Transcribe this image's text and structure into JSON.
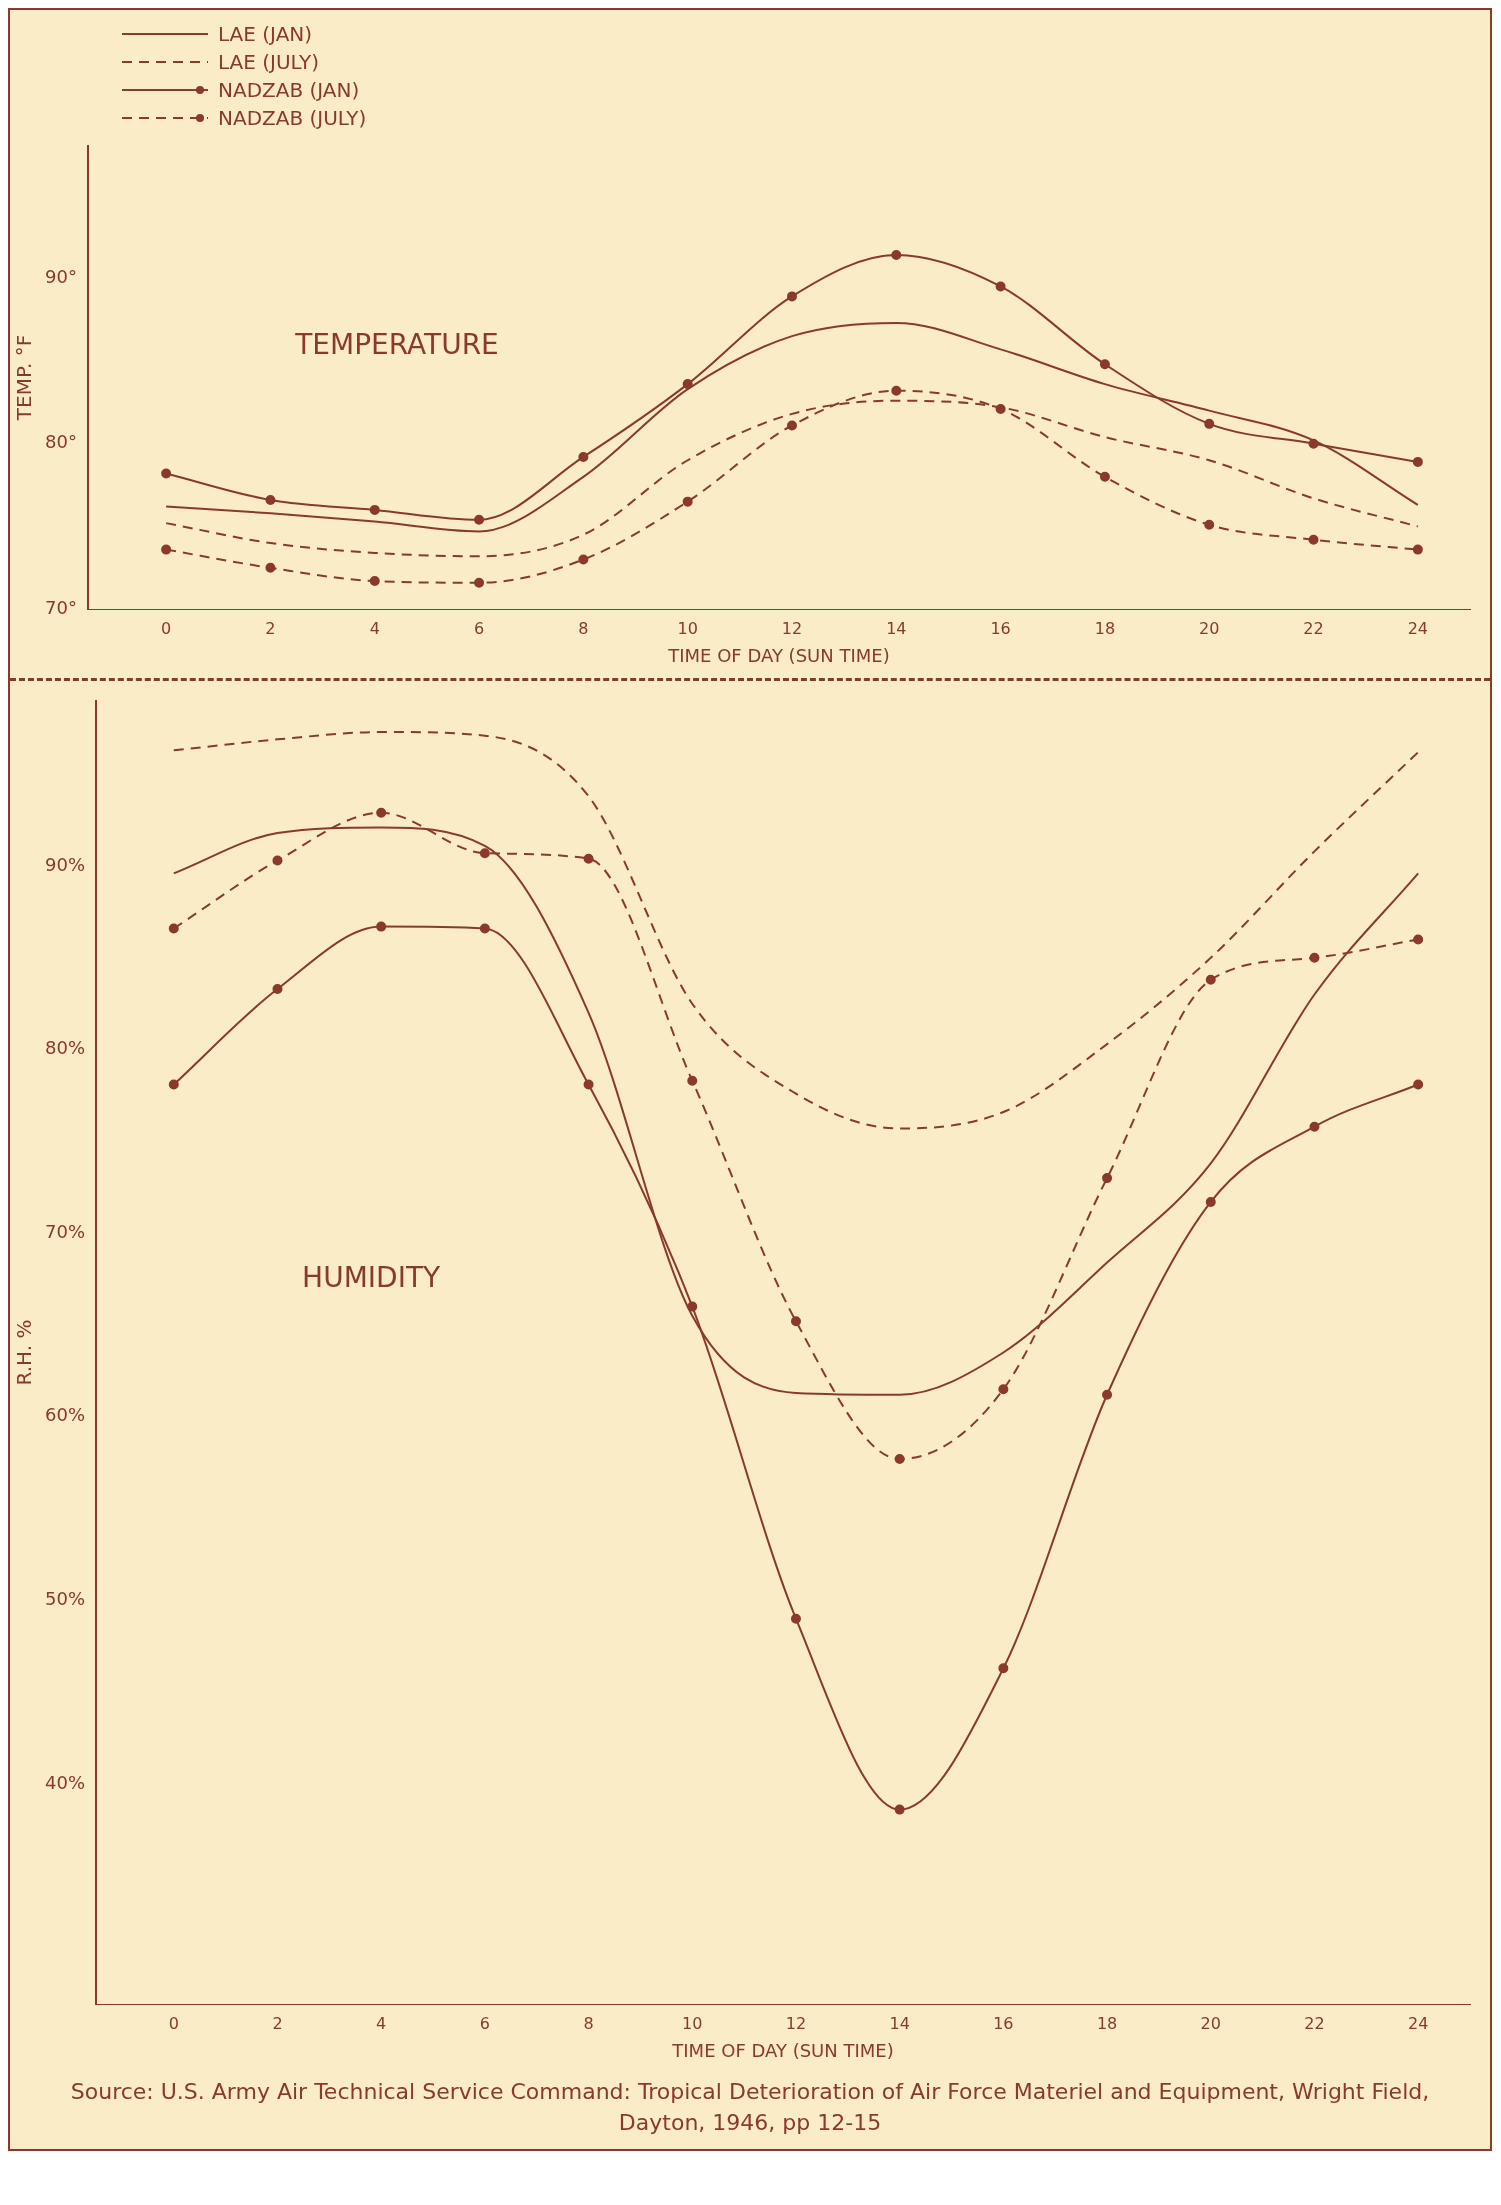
{
  "chart_data": [
    {
      "type": "line",
      "xlabel": "TIME OF DAY (SUN TIME)",
      "ylabel": "TEMP. °F",
      "x": [
        0,
        2,
        4,
        6,
        8,
        10,
        12,
        14,
        16,
        18,
        20,
        22,
        24
      ],
      "xlim": [
        -1.5,
        25
      ],
      "xticks": [
        0,
        2,
        4,
        6,
        8,
        10,
        12,
        14,
        16,
        18,
        20,
        22,
        24
      ],
      "ylim": [
        70,
        98
      ],
      "yticks": [
        {
          "value": 70,
          "label": "70°"
        },
        {
          "value": 80,
          "label": "80°"
        },
        {
          "value": 90,
          "label": "90°"
        }
      ],
      "grid": false,
      "legend": "top left",
      "annotations": [
        "TEMPERATURE"
      ],
      "series": [
        {
          "name": "LAE (JAN)",
          "color": "#8b3a2a",
          "line_style": "solid",
          "marker": "none",
          "values": [
            76.2,
            75.8,
            75.3,
            74.7,
            78,
            83.3,
            86.5,
            87.3,
            85.7,
            83.6,
            82,
            80.2,
            76.3
          ]
        },
        {
          "name": "LAE (JULY)",
          "color": "#8b3a2a",
          "line_style": "dashed",
          "marker": "none",
          "values": [
            75.2,
            74,
            73.4,
            73.2,
            74.5,
            79,
            81.8,
            82.6,
            82.2,
            80.4,
            79,
            76.7,
            75
          ]
        },
        {
          "name": "NADZAB (JAN)",
          "color": "#8b3a2a",
          "line_style": "solid",
          "marker": "circle",
          "values": [
            78.2,
            76.6,
            76,
            75.4,
            79.2,
            83.6,
            88.9,
            91.4,
            89.5,
            84.8,
            81.2,
            80,
            78.9
          ]
        },
        {
          "name": "NADZAB (JULY)",
          "color": "#8b3a2a",
          "line_style": "dashed",
          "marker": "circle",
          "values": [
            73.6,
            72.5,
            71.7,
            71.6,
            73,
            76.5,
            81.1,
            83.2,
            82.1,
            78,
            75.1,
            74.2,
            73.6
          ]
        }
      ]
    },
    {
      "type": "line",
      "xlabel": "TIME OF DAY (SUN TIME)",
      "ylabel": "R.H. %",
      "x": [
        0,
        2,
        4,
        6,
        8,
        10,
        12,
        14,
        16,
        18,
        20,
        22,
        24
      ],
      "xlim": [
        -1.5,
        25
      ],
      "xticks": [
        0,
        2,
        4,
        6,
        8,
        10,
        12,
        14,
        16,
        18,
        20,
        22,
        24
      ],
      "ylim": [
        28,
        99
      ],
      "yticks": [
        {
          "value": 40,
          "label": "40%"
        },
        {
          "value": 50,
          "label": "50%"
        },
        {
          "value": 60,
          "label": "60%"
        },
        {
          "value": 70,
          "label": "70%"
        },
        {
          "value": 80,
          "label": "80%"
        },
        {
          "value": 90,
          "label": "90%"
        }
      ],
      "grid": false,
      "legend": false,
      "annotations": [
        "HUMIDITY",
        "Source: U.S. Army Air Technical Service Command: Tropical Deterioration of Air Force Materiel and Equipment, Wright Field, Dayton, 1946, pp 12-15"
      ],
      "series": [
        {
          "color": "#8b3a2a",
          "line_style": "solid",
          "marker": "none",
          "values": [
            89.6,
            91.8,
            92.1,
            91.1,
            82,
            65.5,
            61.3,
            61.2,
            63.5,
            68.4,
            73.8,
            83,
            89.6
          ]
        },
        {
          "color": "#8b3a2a",
          "line_style": "dashed",
          "marker": "none",
          "values": [
            96.3,
            96.9,
            97.3,
            97.1,
            93.8,
            82.5,
            77.6,
            75.7,
            76.6,
            80.3,
            85,
            90.8,
            96.2
          ]
        },
        {
          "color": "#8b3a2a",
          "line_style": "solid",
          "marker": "circle",
          "values": [
            78.1,
            83.3,
            86.7,
            86.6,
            78.1,
            66,
            49,
            38.6,
            46.3,
            61.2,
            71.7,
            75.8,
            78.1
          ]
        },
        {
          "color": "#8b3a2a",
          "line_style": "dashed",
          "marker": "circle",
          "values": [
            86.6,
            90.3,
            92.9,
            90.7,
            90.4,
            78.3,
            65.2,
            57.7,
            61.5,
            73,
            83.8,
            85,
            86
          ]
        }
      ]
    }
  ]
}
